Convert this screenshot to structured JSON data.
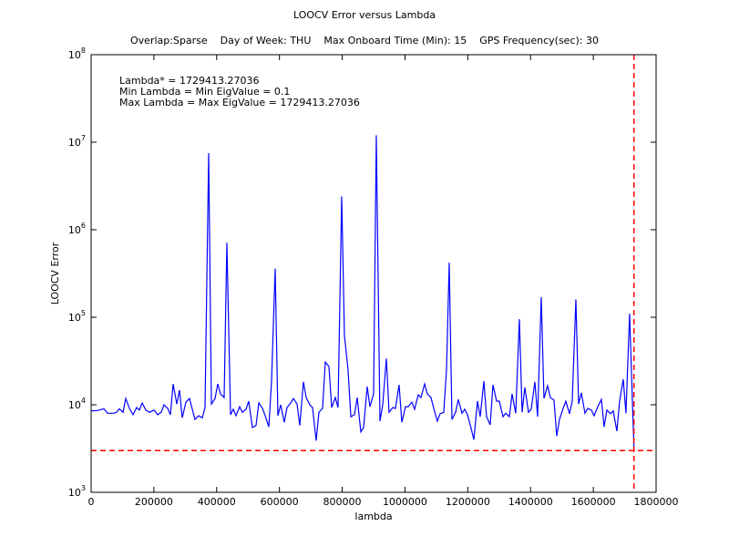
{
  "chart_data": {
    "type": "line",
    "title": "LOOCV Error versus Lambda",
    "subtitle": "Overlap:Sparse    Day of Week: THU    Max Onboard Time (Min): 15    GPS Frequency(sec): 30",
    "annotations": [
      "Lambda* = 1729413.27036",
      "Min Lambda = Min EigValue = 0.1",
      "Max Lambda = Max EigValue = 1729413.27036"
    ],
    "xlabel": "lambda",
    "ylabel": "LOOCV Error",
    "xlim": [
      0,
      1800000
    ],
    "xticks": [
      0,
      200000,
      400000,
      600000,
      800000,
      1000000,
      1200000,
      1400000,
      1600000,
      1800000
    ],
    "ylim": [
      1000,
      100000000
    ],
    "log_y": true,
    "yticks": [
      {
        "value": 1000,
        "label": "10^3"
      },
      {
        "value": 10000,
        "label": "10^4"
      },
      {
        "value": 100000,
        "label": "10^5"
      },
      {
        "value": 1000000,
        "label": "10^6"
      },
      {
        "value": 10000000,
        "label": "10^7"
      },
      {
        "value": 100000000,
        "label": "10^8"
      }
    ],
    "vline_x": 1729413.27036,
    "hline_y": 3000,
    "ref_color": "#ff0000",
    "x": [
      0,
      20300,
      40600,
      52300,
      72600,
      81300,
      90000,
      101600,
      110300,
      121900,
      133500,
      145200,
      153900,
      162600,
      174200,
      185800,
      200300,
      211900,
      223500,
      232200,
      243900,
      252600,
      261300,
      272900,
      281600,
      290300,
      301900,
      313500,
      322200,
      330900,
      342600,
      354200,
      362900,
      374500,
      383200,
      394800,
      403500,
      412300,
      423800,
      432500,
      444200,
      452900,
      461600,
      473200,
      481900,
      493500,
      502200,
      513800,
      525400,
      534200,
      545800,
      554500,
      566100,
      574800,
      586400,
      595100,
      603800,
      615400,
      624100,
      635800,
      644500,
      656100,
      664800,
      676400,
      685100,
      696700,
      705400,
      717000,
      725800,
      737400,
      746100,
      757700,
      766400,
      778000,
      786700,
      798300,
      807000,
      818600,
      827400,
      839000,
      847700,
      859300,
      868000,
      879600,
      888300,
      899900,
      908600,
      920300,
      929000,
      940600,
      949300,
      960900,
      969600,
      981200,
      989900,
      1001500,
      1010200,
      1021900,
      1030600,
      1042200,
      1050900,
      1062500,
      1071200,
      1082800,
      1091500,
      1103100,
      1111800,
      1123500,
      1132200,
      1140900,
      1149600,
      1161200,
      1169900,
      1181500,
      1190200,
      1199000,
      1210600,
      1219300,
      1230900,
      1239600,
      1251200,
      1259900,
      1271500,
      1280200,
      1291800,
      1300500,
      1312200,
      1320900,
      1332500,
      1341200,
      1352800,
      1364400,
      1373100,
      1381800,
      1393400,
      1402100,
      1413800,
      1422500,
      1434100,
      1442800,
      1454400,
      1463100,
      1474700,
      1483400,
      1492100,
      1503800,
      1512500,
      1524100,
      1532800,
      1544400,
      1553100,
      1561800,
      1573400,
      1582100,
      1593800,
      1602500,
      1614100,
      1625700,
      1634400,
      1643100,
      1654700,
      1663400,
      1675000,
      1683700,
      1695300,
      1704000,
      1715600,
      1724300,
      1729400
    ],
    "series": [
      {
        "name": "LOOCV Error",
        "color": "#0000ff",
        "values": [
          8500,
          8600,
          9000,
          8000,
          8000,
          8200,
          9000,
          8200,
          11800,
          9100,
          7700,
          9300,
          8700,
          10500,
          8700,
          8200,
          8700,
          7700,
          8200,
          10000,
          9100,
          7700,
          17300,
          10200,
          14700,
          7100,
          10700,
          11800,
          8900,
          6800,
          7500,
          7100,
          9300,
          7500000,
          10200,
          11800,
          17300,
          13300,
          12100,
          710000,
          7700,
          8900,
          7500,
          9500,
          8200,
          8900,
          11000,
          5500,
          5800,
          10500,
          9100,
          7500,
          5600,
          18600,
          360000,
          7500,
          10000,
          6300,
          9300,
          10500,
          11800,
          10200,
          5800,
          18300,
          12100,
          10000,
          9300,
          3900,
          8200,
          9100,
          30800,
          27300,
          9300,
          12100,
          9300,
          2400000,
          62000,
          25000,
          7300,
          7700,
          12100,
          4900,
          5500,
          16100,
          9500,
          13300,
          12000000,
          6500,
          10000,
          33800,
          8200,
          9300,
          9100,
          16900,
          6300,
          9500,
          9500,
          10700,
          8900,
          13000,
          12100,
          17300,
          13300,
          12100,
          9100,
          6500,
          7900,
          8200,
          25000,
          420000,
          6800,
          8200,
          11500,
          8000,
          8900,
          7700,
          5400,
          4000,
          11000,
          7300,
          18600,
          7300,
          5900,
          16900,
          11000,
          11000,
          7300,
          8000,
          7300,
          13300,
          8000,
          95000,
          8200,
          15800,
          8200,
          8900,
          18300,
          7300,
          170000,
          11800,
          16500,
          12100,
          11300,
          4400,
          6800,
          9100,
          11000,
          7900,
          11000,
          160000,
          10200,
          13700,
          8000,
          9100,
          8700,
          7500,
          9500,
          11500,
          5600,
          8700,
          7900,
          8500,
          5000,
          11000,
          19600,
          8000,
          110000,
          11500,
          3300
        ]
      }
    ]
  }
}
